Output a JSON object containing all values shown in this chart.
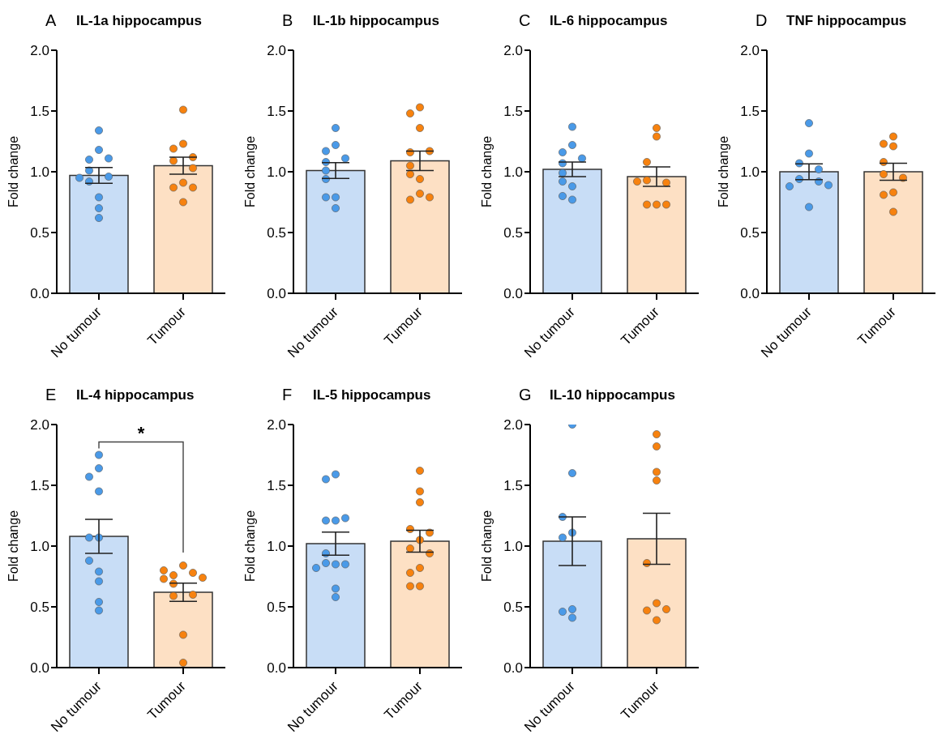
{
  "chart_data": [
    {
      "type": "bar",
      "title": "IL-1a hippocampus",
      "annotations": [
        "A"
      ],
      "ylabel": "Fold change",
      "categories": [
        "No tumour",
        "Tumour"
      ],
      "ylim": [
        0,
        2
      ],
      "yticks": [
        {
          "value": 0,
          "label": "0.0"
        },
        {
          "value": 0.5,
          "label": "0.5"
        },
        {
          "value": 1,
          "label": "1.0"
        },
        {
          "value": 1.5,
          "label": "1.5"
        },
        {
          "value": 2,
          "label": "2.0"
        }
      ],
      "marker": "circle",
      "series": [
        {
          "values": [
            0.97,
            1.05
          ],
          "colors": [
            "#c8ddf6",
            "#fde0c4"
          ],
          "errors": [
            0.065,
            0.07
          ]
        },
        {
          "type": "scatter",
          "color": "#4a9ae8",
          "x": [
            "No tumour",
            "No tumour",
            "No tumour",
            "No tumour",
            "No tumour",
            "No tumour",
            "No tumour",
            "No tumour",
            "No tumour",
            "No tumour",
            "No tumour"
          ],
          "values": [
            1.34,
            1.18,
            1.1,
            1.11,
            1.01,
            0.96,
            0.95,
            0.92,
            0.79,
            0.7,
            0.62
          ]
        },
        {
          "type": "scatter",
          "color": "#f7820f",
          "x": [
            "Tumour",
            "Tumour",
            "Tumour",
            "Tumour",
            "Tumour",
            "Tumour",
            "Tumour",
            "Tumour",
            "Tumour",
            "Tumour"
          ],
          "values": [
            1.51,
            1.23,
            1.19,
            1.12,
            1.09,
            1.03,
            0.91,
            0.87,
            0.87,
            0.75
          ]
        }
      ]
    },
    {
      "type": "bar",
      "title": "IL-1b hippocampus",
      "annotations": [
        "B"
      ],
      "ylabel": "Fold change",
      "categories": [
        "No tumour",
        "Tumour"
      ],
      "ylim": [
        0,
        2
      ],
      "yticks": [
        {
          "value": 0,
          "label": "0.0"
        },
        {
          "value": 0.5,
          "label": "0.5"
        },
        {
          "value": 1,
          "label": "1.0"
        },
        {
          "value": 1.5,
          "label": "1.5"
        },
        {
          "value": 2,
          "label": "2.0"
        }
      ],
      "marker": "circle",
      "series": [
        {
          "values": [
            1.01,
            1.09
          ],
          "colors": [
            "#c8ddf6",
            "#fde0c4"
          ],
          "errors": [
            0.065,
            0.08
          ]
        },
        {
          "type": "scatter",
          "color": "#4a9ae8",
          "x": [
            "No tumour",
            "No tumour",
            "No tumour",
            "No tumour",
            "No tumour",
            "No tumour",
            "No tumour",
            "No tumour",
            "No tumour",
            "No tumour"
          ],
          "values": [
            1.36,
            1.22,
            1.17,
            1.11,
            1.08,
            1.01,
            0.94,
            0.79,
            0.79,
            0.7
          ]
        },
        {
          "type": "scatter",
          "color": "#f7820f",
          "x": [
            "Tumour",
            "Tumour",
            "Tumour",
            "Tumour",
            "Tumour",
            "Tumour",
            "Tumour",
            "Tumour",
            "Tumour",
            "Tumour",
            "Tumour"
          ],
          "values": [
            1.53,
            1.48,
            1.36,
            1.16,
            1.17,
            1.05,
            0.98,
            0.94,
            0.82,
            0.77,
            0.79
          ]
        }
      ]
    },
    {
      "type": "bar",
      "title": "IL-6 hippocampus",
      "annotations": [
        "C"
      ],
      "ylabel": "Fold change",
      "categories": [
        "No tumour",
        "Tumour"
      ],
      "ylim": [
        0,
        2
      ],
      "yticks": [
        {
          "value": 0,
          "label": "0.0"
        },
        {
          "value": 0.5,
          "label": "0.5"
        },
        {
          "value": 1,
          "label": "1.0"
        },
        {
          "value": 1.5,
          "label": "1.5"
        },
        {
          "value": 2,
          "label": "2.0"
        }
      ],
      "marker": "circle",
      "series": [
        {
          "values": [
            1.02,
            0.96
          ],
          "colors": [
            "#c8ddf6",
            "#fde0c4"
          ],
          "errors": [
            0.06,
            0.08
          ]
        },
        {
          "type": "scatter",
          "color": "#4a9ae8",
          "x": [
            "No tumour",
            "No tumour",
            "No tumour",
            "No tumour",
            "No tumour",
            "No tumour",
            "No tumour",
            "No tumour",
            "No tumour",
            "No tumour"
          ],
          "values": [
            1.37,
            1.22,
            1.16,
            1.11,
            1.07,
            0.99,
            0.92,
            0.88,
            0.77,
            0.8
          ]
        },
        {
          "type": "scatter",
          "color": "#f7820f",
          "x": [
            "Tumour",
            "Tumour",
            "Tumour",
            "Tumour",
            "Tumour",
            "Tumour",
            "Tumour",
            "Tumour",
            "Tumour"
          ],
          "values": [
            1.36,
            1.29,
            1.08,
            0.93,
            0.91,
            0.92,
            0.73,
            0.73,
            0.73
          ]
        }
      ]
    },
    {
      "type": "bar",
      "title": "TNF hippocampus",
      "annotations": [
        "D"
      ],
      "ylabel": "Fold change",
      "categories": [
        "No tumour",
        "Tumour"
      ],
      "ylim": [
        0,
        2
      ],
      "yticks": [
        {
          "value": 0,
          "label": "0.0"
        },
        {
          "value": 0.5,
          "label": "0.5"
        },
        {
          "value": 1,
          "label": "1.0"
        },
        {
          "value": 1.5,
          "label": "1.5"
        },
        {
          "value": 2,
          "label": "2.0"
        }
      ],
      "marker": "circle",
      "series": [
        {
          "values": [
            1.0,
            1.0
          ],
          "colors": [
            "#c8ddf6",
            "#fde0c4"
          ],
          "errors": [
            0.065,
            0.07
          ]
        },
        {
          "type": "scatter",
          "color": "#4a9ae8",
          "x": [
            "No tumour",
            "No tumour",
            "No tumour",
            "No tumour",
            "No tumour",
            "No tumour",
            "No tumour",
            "No tumour",
            "No tumour"
          ],
          "values": [
            1.4,
            1.15,
            1.07,
            1.02,
            0.94,
            0.92,
            0.88,
            0.89,
            0.71
          ]
        },
        {
          "type": "scatter",
          "color": "#f7820f",
          "x": [
            "Tumour",
            "Tumour",
            "Tumour",
            "Tumour",
            "Tumour",
            "Tumour",
            "Tumour",
            "Tumour",
            "Tumour"
          ],
          "values": [
            1.29,
            1.23,
            1.21,
            1.08,
            0.98,
            0.95,
            0.83,
            0.81,
            0.67
          ]
        }
      ]
    },
    {
      "type": "bar",
      "title": "IL-4 hippocampus",
      "annotations": [
        "E",
        "*"
      ],
      "ylabel": "Fold change",
      "categories": [
        "No tumour",
        "Tumour"
      ],
      "ylim": [
        0,
        2
      ],
      "yticks": [
        {
          "value": 0,
          "label": "0.0"
        },
        {
          "value": 0.5,
          "label": "0.5"
        },
        {
          "value": 1,
          "label": "1.0"
        },
        {
          "value": 1.5,
          "label": "1.5"
        },
        {
          "value": 2,
          "label": "2.0"
        }
      ],
      "marker": "circle",
      "series": [
        {
          "values": [
            1.08,
            0.62
          ],
          "colors": [
            "#c8ddf6",
            "#fde0c4"
          ],
          "errors": [
            0.14,
            0.075
          ]
        },
        {
          "type": "scatter",
          "color": "#4a9ae8",
          "x": [
            "No tumour",
            "No tumour",
            "No tumour",
            "No tumour",
            "No tumour",
            "No tumour",
            "No tumour",
            "No tumour",
            "No tumour",
            "No tumour",
            "No tumour"
          ],
          "values": [
            1.75,
            1.64,
            1.57,
            1.45,
            1.07,
            1.07,
            0.88,
            0.79,
            0.71,
            0.54,
            0.47
          ]
        },
        {
          "type": "scatter",
          "color": "#f7820f",
          "x": [
            "Tumour",
            "Tumour",
            "Tumour",
            "Tumour",
            "Tumour",
            "Tumour",
            "Tumour",
            "Tumour",
            "Tumour",
            "Tumour",
            "Tumour"
          ],
          "values": [
            0.84,
            0.76,
            0.69,
            0.78,
            0.59,
            0.73,
            0.6,
            0.8,
            0.74,
            0.27,
            0.04
          ]
        }
      ]
    },
    {
      "type": "bar",
      "title": "IL-5 hippocampus",
      "annotations": [
        "F"
      ],
      "ylabel": "Fold change",
      "categories": [
        "No tumour",
        "Tumour"
      ],
      "ylim": [
        0,
        2
      ],
      "yticks": [
        {
          "value": 0,
          "label": "0.0"
        },
        {
          "value": 0.5,
          "label": "0.5"
        },
        {
          "value": 1,
          "label": "1.0"
        },
        {
          "value": 1.5,
          "label": "1.5"
        },
        {
          "value": 2,
          "label": "2.0"
        }
      ],
      "marker": "circle",
      "series": [
        {
          "values": [
            1.02,
            1.04
          ],
          "colors": [
            "#c8ddf6",
            "#fde0c4"
          ],
          "errors": [
            0.095,
            0.09
          ]
        },
        {
          "type": "scatter",
          "color": "#4a9ae8",
          "x": [
            "No tumour",
            "No tumour",
            "No tumour",
            "No tumour",
            "No tumour",
            "No tumour",
            "No tumour",
            "No tumour",
            "No tumour",
            "No tumour",
            "No tumour",
            "No tumour"
          ],
          "values": [
            1.59,
            1.55,
            1.21,
            1.21,
            1.23,
            0.94,
            0.85,
            0.86,
            0.85,
            0.82,
            0.65,
            0.58
          ]
        },
        {
          "type": "scatter",
          "color": "#f7820f",
          "x": [
            "Tumour",
            "Tumour",
            "Tumour",
            "Tumour",
            "Tumour",
            "Tumour",
            "Tumour",
            "Tumour",
            "Tumour",
            "Tumour",
            "Tumour",
            "Tumour"
          ],
          "values": [
            1.62,
            1.45,
            1.36,
            1.14,
            1.11,
            1.05,
            0.98,
            0.94,
            0.82,
            0.78,
            0.67,
            0.67
          ]
        }
      ]
    },
    {
      "type": "bar",
      "title": "IL-10 hippocampus",
      "annotations": [
        "G"
      ],
      "ylabel": "Fold change",
      "categories": [
        "No tumour",
        "Tumour"
      ],
      "ylim": [
        0,
        2
      ],
      "yticks": [
        {
          "value": 0,
          "label": "0.0"
        },
        {
          "value": 0.5,
          "label": "0.5"
        },
        {
          "value": 1,
          "label": "1.0"
        },
        {
          "value": 1.5,
          "label": "1.5"
        },
        {
          "value": 2,
          "label": "2.0"
        }
      ],
      "marker": "circle",
      "series": [
        {
          "values": [
            1.04,
            1.06
          ],
          "colors": [
            "#c8ddf6",
            "#fde0c4"
          ],
          "errors": [
            0.2,
            0.21
          ]
        },
        {
          "type": "scatter",
          "color": "#4a9ae8",
          "x": [
            "No tumour",
            "No tumour",
            "No tumour",
            "No tumour",
            "No tumour",
            "No tumour",
            "No tumour",
            "No tumour"
          ],
          "values": [
            2.0,
            1.6,
            1.24,
            1.11,
            1.07,
            0.48,
            0.41,
            0.46
          ]
        },
        {
          "type": "scatter",
          "color": "#f7820f",
          "x": [
            "Tumour",
            "Tumour",
            "Tumour",
            "Tumour",
            "Tumour",
            "Tumour",
            "Tumour",
            "Tumour",
            "Tumour"
          ],
          "values": [
            1.92,
            1.82,
            1.61,
            1.54,
            0.86,
            0.53,
            0.47,
            0.48,
            0.39
          ]
        }
      ]
    }
  ]
}
